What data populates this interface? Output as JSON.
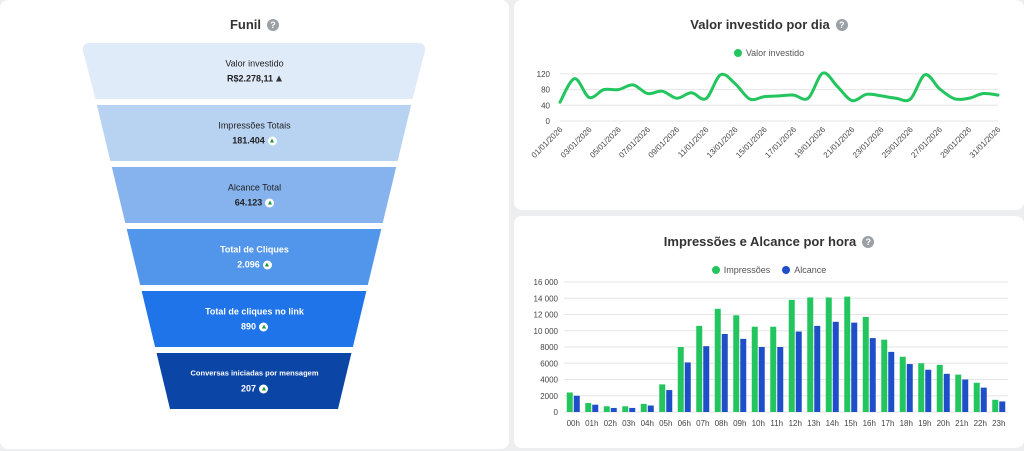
{
  "funnel": {
    "title": "Funil",
    "help": "?",
    "stages": [
      {
        "label": "Valor investido",
        "value": "R$2.278,11",
        "fill": "#e0ebfa",
        "text_color": "#222"
      },
      {
        "label": "Impressões Totais",
        "value": "181.404",
        "fill": "#b8d2f2",
        "text_color": "#222"
      },
      {
        "label": "Alcance Total",
        "value": "64.123",
        "fill": "#86b3ee",
        "text_color": "#222"
      },
      {
        "label": "Total de Cliques",
        "value": "2.096",
        "fill": "#5196ea",
        "text_color": "#fff"
      },
      {
        "label": "Total de cliques no link",
        "value": "890",
        "fill": "#1e74e8",
        "text_color": "#fff"
      },
      {
        "label": "Conversas iniciadas por mensagem",
        "value": "207",
        "fill": "#0b45a6",
        "text_color": "#fff"
      }
    ]
  },
  "line_chart": {
    "title": "Valor investido por dia",
    "help": "?",
    "chart_data": {
      "type": "line",
      "legend": "top-center",
      "series": [
        {
          "name": "Valor investido",
          "color": "#22c55e",
          "values": [
            48,
            108,
            60,
            80,
            80,
            92,
            70,
            76,
            58,
            72,
            57,
            118,
            95,
            56,
            62,
            64,
            66,
            58,
            122,
            88,
            52,
            68,
            64,
            58,
            56,
            118,
            82,
            57,
            58,
            70,
            66
          ]
        }
      ],
      "x": [
        "01/01/2026",
        "02/01/2026",
        "03/01/2026",
        "04/01/2026",
        "05/01/2026",
        "06/01/2026",
        "07/01/2026",
        "08/01/2026",
        "09/01/2026",
        "10/01/2026",
        "11/01/2026",
        "12/01/2026",
        "13/01/2026",
        "14/01/2026",
        "15/01/2026",
        "16/01/2026",
        "17/01/2026",
        "18/01/2026",
        "19/01/2026",
        "20/01/2026",
        "21/01/2026",
        "22/01/2026",
        "23/01/2026",
        "24/01/2026",
        "25/01/2026",
        "26/01/2026",
        "27/01/2026",
        "28/01/2026",
        "29/01/2026",
        "30/01/2026",
        "31/01/2026"
      ],
      "xticks": [
        "01/01/2026",
        "03/01/2026",
        "05/01/2026",
        "07/01/2026",
        "09/01/2026",
        "11/01/2026",
        "13/01/2026",
        "15/01/2026",
        "17/01/2026",
        "19/01/2026",
        "21/01/2026",
        "23/01/2026",
        "25/01/2026",
        "27/01/2026",
        "29/01/2026",
        "31/01/2026"
      ],
      "yticks": [
        "0",
        "40",
        "80",
        "120"
      ],
      "ylim": [
        0,
        130
      ],
      "grid": true
    }
  },
  "bar_chart": {
    "title": "Impressões e Alcance por hora",
    "help": "?",
    "chart_data": {
      "type": "bar",
      "legend": "top-center",
      "categories": [
        "00h",
        "01h",
        "02h",
        "03h",
        "04h",
        "05h",
        "06h",
        "07h",
        "08h",
        "09h",
        "10h",
        "11h",
        "12h",
        "13h",
        "14h",
        "15h",
        "16h",
        "17h",
        "18h",
        "19h",
        "20h",
        "21h",
        "22h",
        "23h"
      ],
      "series": [
        {
          "name": "Impressões",
          "color": "#22c55e",
          "values": [
            2400,
            1100,
            700,
            700,
            1000,
            3400,
            8000,
            10600,
            12700,
            11900,
            10500,
            10500,
            13800,
            14100,
            14100,
            14200,
            11700,
            8900,
            6800,
            6000,
            5800,
            4600,
            3600,
            1500
          ]
        },
        {
          "name": "Alcance",
          "color": "#1e4fc9",
          "values": [
            2000,
            900,
            500,
            500,
            800,
            2700,
            6100,
            8100,
            9600,
            9000,
            8000,
            8000,
            9900,
            10600,
            11100,
            11000,
            9100,
            7400,
            5900,
            5200,
            4700,
            4000,
            3000,
            1300
          ]
        }
      ],
      "yticks": [
        "0",
        "2000",
        "4000",
        "6000",
        "8000",
        "10 000",
        "12 000",
        "14 000",
        "16 000"
      ],
      "ylim": [
        0,
        16000
      ],
      "grid": true
    }
  }
}
